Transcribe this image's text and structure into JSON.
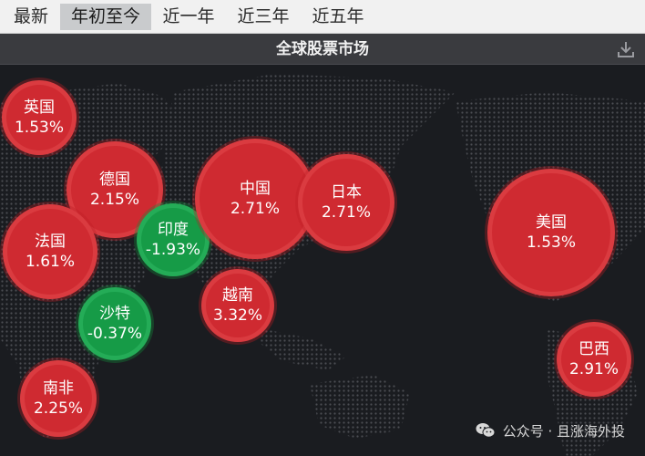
{
  "tabs": [
    {
      "label": "最新",
      "active": false
    },
    {
      "label": "年初至今",
      "active": true
    },
    {
      "label": "近一年",
      "active": false
    },
    {
      "label": "近三年",
      "active": false
    },
    {
      "label": "近五年",
      "active": false
    }
  ],
  "panel": {
    "title": "全球股票市场",
    "download_icon": "download-icon"
  },
  "colors": {
    "up": "#cf2a31",
    "down": "#169b47",
    "background": "#1a1c20"
  },
  "markets": [
    {
      "name": "英国",
      "change": "1.53%",
      "direction": "up"
    },
    {
      "name": "德国",
      "change": "2.15%",
      "direction": "up"
    },
    {
      "name": "法国",
      "change": "1.61%",
      "direction": "up"
    },
    {
      "name": "印度",
      "change": "-1.93%",
      "direction": "down"
    },
    {
      "name": "沙特",
      "change": "-0.37%",
      "direction": "down"
    },
    {
      "name": "中国",
      "change": "2.71%",
      "direction": "up"
    },
    {
      "name": "日本",
      "change": "2.71%",
      "direction": "up"
    },
    {
      "name": "越南",
      "change": "3.32%",
      "direction": "up"
    },
    {
      "name": "美国",
      "change": "1.53%",
      "direction": "up"
    },
    {
      "name": "巴西",
      "change": "2.91%",
      "direction": "up"
    },
    {
      "name": "南非",
      "change": "2.25%",
      "direction": "up"
    }
  ],
  "watermark": {
    "text": "公众号 · 且涨海外投",
    "icon": "wechat-icon"
  }
}
